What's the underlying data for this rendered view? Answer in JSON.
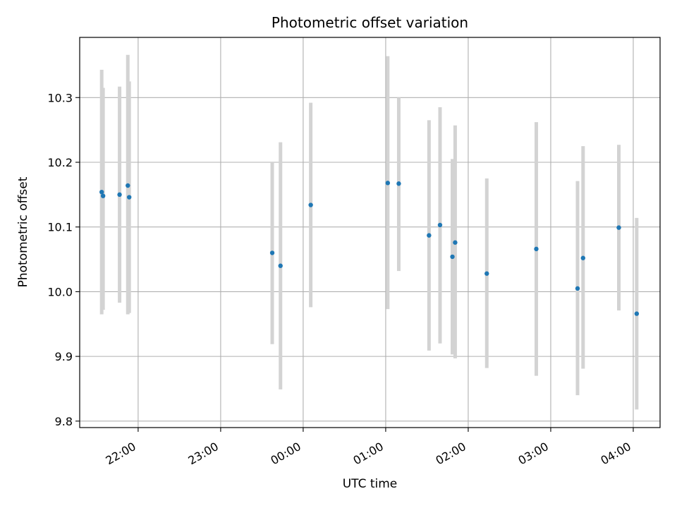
{
  "chart_data": {
    "type": "scatter",
    "title": "Photometric offset variation",
    "xlabel": "UTC time",
    "ylabel": "Photometric offset",
    "x_axis": "time",
    "x_ticks": [
      "22:00",
      "23:00",
      "00:00",
      "01:00",
      "02:00",
      "03:00",
      "04:00"
    ],
    "x_tick_values": [
      "21:59:30",
      "22:59:30",
      "23:59:30",
      "00:59:30",
      "01:59:30",
      "02:59:30",
      "03:59:30"
    ],
    "xlim": [
      "21:17:00",
      "04:19:00"
    ],
    "y_ticks": [
      9.8,
      9.9,
      10.0,
      10.1,
      10.2,
      10.3
    ],
    "y_tick_labels": [
      "9.8",
      "9.9",
      "10.0",
      "10.1",
      "10.2",
      "10.3"
    ],
    "ylim": [
      9.79,
      10.393
    ],
    "grid": true,
    "errorbar_color": "#d3d3d3",
    "marker_color": "#1f77b4",
    "points": [
      {
        "x": "21:33:00",
        "y": 10.154,
        "err_low": 9.965,
        "err_high": 10.343
      },
      {
        "x": "21:34:00",
        "y": 10.148,
        "err_low": 9.972,
        "err_high": 10.315
      },
      {
        "x": "21:46:00",
        "y": 10.15,
        "err_low": 9.983,
        "err_high": 10.317
      },
      {
        "x": "21:52:00",
        "y": 10.164,
        "err_low": 9.965,
        "err_high": 10.366
      },
      {
        "x": "21:53:00",
        "y": 10.146,
        "err_low": 9.967,
        "err_high": 10.325
      },
      {
        "x": "23:37:00",
        "y": 10.06,
        "err_low": 9.919,
        "err_high": 10.2
      },
      {
        "x": "23:43:00",
        "y": 10.04,
        "err_low": 9.849,
        "err_high": 10.231
      },
      {
        "x": "00:05:00",
        "y": 10.134,
        "err_low": 9.976,
        "err_high": 10.292
      },
      {
        "x": "01:01:00",
        "y": 10.168,
        "err_low": 9.973,
        "err_high": 10.364
      },
      {
        "x": "01:09:00",
        "y": 10.167,
        "err_low": 10.032,
        "err_high": 10.3
      },
      {
        "x": "01:31:00",
        "y": 10.087,
        "err_low": 9.909,
        "err_high": 10.265
      },
      {
        "x": "01:39:00",
        "y": 10.103,
        "err_low": 9.92,
        "err_high": 10.285
      },
      {
        "x": "01:48:00",
        "y": 10.054,
        "err_low": 9.903,
        "err_high": 10.205
      },
      {
        "x": "01:50:00",
        "y": 10.076,
        "err_low": 9.897,
        "err_high": 10.257
      },
      {
        "x": "02:13:00",
        "y": 10.028,
        "err_low": 9.882,
        "err_high": 10.175
      },
      {
        "x": "02:49:00",
        "y": 10.066,
        "err_low": 9.87,
        "err_high": 10.262
      },
      {
        "x": "03:19:00",
        "y": 10.005,
        "err_low": 9.84,
        "err_high": 10.171
      },
      {
        "x": "03:23:00",
        "y": 10.052,
        "err_low": 9.881,
        "err_high": 10.225
      },
      {
        "x": "03:49:00",
        "y": 10.099,
        "err_low": 9.971,
        "err_high": 10.227
      },
      {
        "x": "04:02:00",
        "y": 9.966,
        "err_low": 9.818,
        "err_high": 10.114
      }
    ]
  }
}
